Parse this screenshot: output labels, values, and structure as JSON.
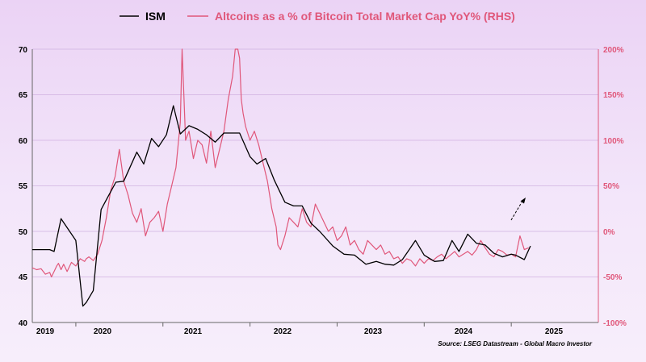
{
  "chart_data": {
    "type": "line",
    "title": "",
    "xlabel": "",
    "ylabel": "",
    "legend_position": "top",
    "grid": "horizontal",
    "x_ticks": [
      "2019",
      "2020",
      "2021",
      "2022",
      "2023",
      "2024",
      "2025"
    ],
    "x_range": [
      2019.0,
      2025.5
    ],
    "ylim_left": [
      40,
      70
    ],
    "ylim_right": [
      -100,
      200
    ],
    "left_ticks": [
      "70",
      "65",
      "60",
      "55",
      "50",
      "45",
      "40"
    ],
    "right_ticks": [
      "200%",
      "150%",
      "100%",
      "50%",
      "0%",
      "-50%",
      "-100%"
    ],
    "source": "Source: LSEG Datastream - Global Macro Investor",
    "colors": {
      "ism": "#000000",
      "alt": "#e0577a",
      "grid": "#d1b2e0"
    },
    "annotation": "dashed-arrow",
    "series": [
      {
        "name": "ISM",
        "axis": "left",
        "x": [
          2019.0,
          2019.2,
          2019.25,
          2019.33,
          2019.5,
          2019.58,
          2019.62,
          2019.7,
          2019.79,
          2019.88,
          2019.96,
          2020.05,
          2020.2,
          2020.28,
          2020.37,
          2020.45,
          2020.54,
          2020.62,
          2020.7,
          2020.8,
          2020.9,
          2021.0,
          2021.1,
          2021.2,
          2021.28,
          2021.38,
          2021.5,
          2021.58,
          2021.68,
          2021.78,
          2021.9,
          2022.0,
          2022.1,
          2022.2,
          2022.3,
          2022.45,
          2022.58,
          2022.7,
          2022.83,
          2022.95,
          2023.05,
          2023.15,
          2023.25,
          2023.4,
          2023.5,
          2023.62,
          2023.72,
          2023.82,
          2023.9,
          2024.0,
          2024.1,
          2024.2,
          2024.3,
          2024.4,
          2024.5,
          2024.55,
          2024.65,
          2024.72
        ],
        "values": [
          48.0,
          48.0,
          47.8,
          51.4,
          49.0,
          41.8,
          42.2,
          43.5,
          52.4,
          54.0,
          55.4,
          55.5,
          58.7,
          57.4,
          60.2,
          59.3,
          60.6,
          63.8,
          60.7,
          61.6,
          61.2,
          60.6,
          59.8,
          60.8,
          60.8,
          60.8,
          58.2,
          57.4,
          58.0,
          55.6,
          53.2,
          52.8,
          52.8,
          50.9,
          50.0,
          48.4,
          47.5,
          47.4,
          46.4,
          46.7,
          46.4,
          46.3,
          46.9,
          49.0,
          47.4,
          46.7,
          46.8,
          49.0,
          47.8,
          49.7,
          48.7,
          48.5,
          47.6,
          47.2,
          47.5,
          47.4,
          46.9,
          48.4
        ]
      },
      {
        "name": "Altcoins as a % of Bitcoin Total Market Cap YoY% (RHS)",
        "axis": "right",
        "x": [
          2019.0,
          2019.05,
          2019.1,
          2019.15,
          2019.2,
          2019.22,
          2019.25,
          2019.28,
          2019.3,
          2019.33,
          2019.36,
          2019.4,
          2019.45,
          2019.5,
          2019.55,
          2019.6,
          2019.62,
          2019.65,
          2019.7,
          2019.75,
          2019.8,
          2019.85,
          2019.9,
          2019.95,
          2020.0,
          2020.05,
          2020.1,
          2020.15,
          2020.2,
          2020.25,
          2020.3,
          2020.35,
          2020.4,
          2020.45,
          2020.5,
          2020.55,
          2020.6,
          2020.65,
          2020.7,
          2020.72,
          2020.74,
          2020.76,
          2020.8,
          2020.85,
          2020.9,
          2020.95,
          2021.0,
          2021.05,
          2021.1,
          2021.15,
          2021.2,
          2021.25,
          2021.3,
          2021.33,
          2021.36,
          2021.38,
          2021.4,
          2021.42,
          2021.45,
          2021.5,
          2021.55,
          2021.6,
          2021.65,
          2021.7,
          2021.75,
          2021.8,
          2021.82,
          2021.85,
          2021.9,
          2021.95,
          2022.0,
          2022.05,
          2022.1,
          2022.15,
          2022.2,
          2022.25,
          2022.3,
          2022.35,
          2022.4,
          2022.45,
          2022.5,
          2022.55,
          2022.6,
          2022.65,
          2022.7,
          2022.75,
          2022.8,
          2022.85,
          2022.9,
          2022.95,
          2023.0,
          2023.05,
          2023.1,
          2023.15,
          2023.2,
          2023.25,
          2023.3,
          2023.35,
          2023.4,
          2023.45,
          2023.5,
          2023.55,
          2023.6,
          2023.65,
          2023.7,
          2023.75,
          2023.8,
          2023.85,
          2023.9,
          2023.95,
          2024.0,
          2024.05,
          2024.1,
          2024.15,
          2024.2,
          2024.25,
          2024.3,
          2024.35,
          2024.4,
          2024.45,
          2024.5,
          2024.55,
          2024.6,
          2024.65,
          2024.7
        ],
        "values": [
          -40,
          -42,
          -41,
          -47,
          -45,
          -50,
          -44,
          -38,
          -35,
          -42,
          -36,
          -44,
          -34,
          -38,
          -30,
          -33,
          -30,
          -28,
          -32,
          -25,
          -10,
          15,
          45,
          60,
          90,
          55,
          40,
          20,
          10,
          25,
          -5,
          10,
          15,
          22,
          0,
          30,
          50,
          70,
          120,
          200,
          150,
          100,
          110,
          80,
          100,
          95,
          75,
          110,
          70,
          90,
          110,
          145,
          170,
          200,
          220,
          190,
          145,
          130,
          115,
          100,
          110,
          95,
          75,
          55,
          25,
          5,
          -15,
          -20,
          -5,
          15,
          10,
          5,
          25,
          10,
          5,
          30,
          20,
          10,
          0,
          5,
          -10,
          -5,
          5,
          -15,
          -10,
          -20,
          -25,
          -10,
          -15,
          -20,
          -15,
          -25,
          -22,
          -30,
          -28,
          -35,
          -30,
          -32,
          -38,
          -30,
          -35,
          -30,
          -32,
          -28,
          -25,
          -30,
          -26,
          -22,
          -28,
          -25,
          -22,
          -26,
          -20,
          -10,
          -18,
          -25,
          -28,
          -20,
          -22,
          -26,
          -25,
          -28,
          -5,
          -20,
          -18
        ]
      }
    ]
  }
}
